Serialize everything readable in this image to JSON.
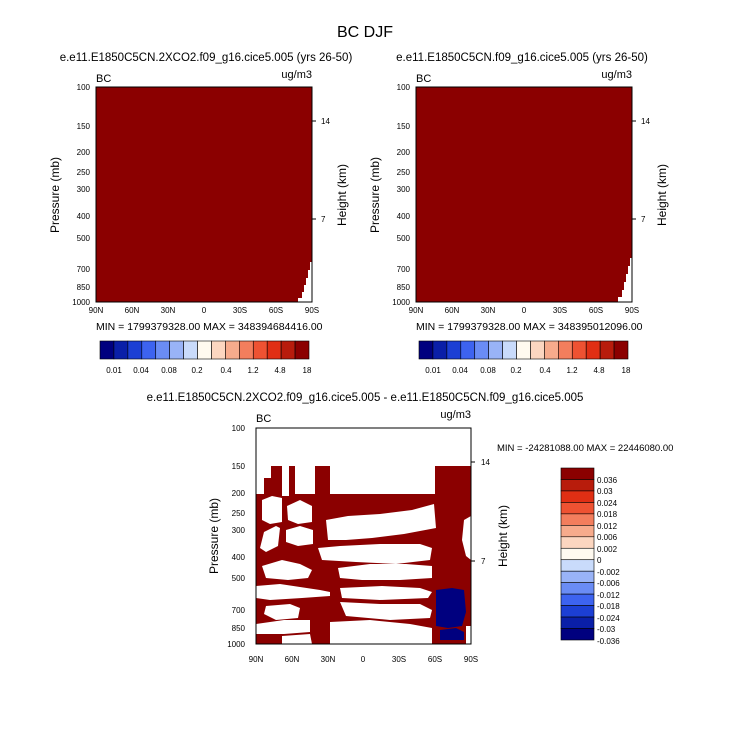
{
  "figure": {
    "title": "BC DJF"
  },
  "colors": {
    "field_fill": "#8b0000",
    "levels_fill": [
      "#00007f",
      "#0a1fa8",
      "#1c3fd4",
      "#3d63f0",
      "#6a8cf5",
      "#99b3f7",
      "#c9dbfb",
      "#fffaf0",
      "#fcd6c0",
      "#f7ab8c",
      "#f37e5d",
      "#ee5232",
      "#e02f14",
      "#b81c0c",
      "#8b0000"
    ],
    "diff_fill": [
      "#00007f",
      "#0a1fa8",
      "#1c3fd4",
      "#3d63f0",
      "#6a8cf5",
      "#99b3f7",
      "#c9dbfb",
      "#fffaf0",
      "#fcd6c0",
      "#f7ab8c",
      "#f37e5d",
      "#ee5232",
      "#e02f14",
      "#b81c0c",
      "#8b0000"
    ]
  },
  "chart_data": [
    {
      "type": "heatmap",
      "title": "e.e11.E1850C5CN.2XCO2.f09_g16.cice5.005 (yrs 26-50)",
      "left_label": "BC",
      "right_label": "ug/m3",
      "ylabel": "Pressure (mb)",
      "ylabel_right": "Height (km)",
      "x_ticks": [
        "90N",
        "60N",
        "30N",
        "0",
        "30S",
        "60S",
        "90S"
      ],
      "y_ticks": [
        "100",
        "150",
        "200",
        "250",
        "300",
        "400",
        "500",
        "700",
        "850",
        "1000"
      ],
      "y_ticks_right": [
        "14",
        "7"
      ],
      "ylim": [
        1000,
        100
      ],
      "min_max": "MIN = 1799379328.00   MAX = 348394684416.00",
      "colorbar_labels": [
        "0.01",
        "0.04",
        "0.08",
        "0.2",
        "0.4",
        "1.2",
        "4.8",
        "18"
      ]
    },
    {
      "type": "heatmap",
      "title": "e.e11.E1850C5CN.f09_g16.cice5.005 (yrs 26-50)",
      "left_label": "BC",
      "right_label": "ug/m3",
      "ylabel": "Pressure (mb)",
      "ylabel_right": "Height (km)",
      "x_ticks": [
        "90N",
        "60N",
        "30N",
        "0",
        "30S",
        "60S",
        "90S"
      ],
      "y_ticks": [
        "100",
        "150",
        "200",
        "250",
        "300",
        "400",
        "500",
        "700",
        "850",
        "1000"
      ],
      "y_ticks_right": [
        "14",
        "7"
      ],
      "ylim": [
        1000,
        100
      ],
      "min_max": "MIN = 1799379328.00   MAX = 348395012096.00",
      "colorbar_labels": [
        "0.01",
        "0.04",
        "0.08",
        "0.2",
        "0.4",
        "1.2",
        "4.8",
        "18"
      ]
    },
    {
      "type": "heatmap",
      "title": "e.e11.E1850C5CN.2XCO2.f09_g16.cice5.005 - e.e11.E1850C5CN.f09_g16.cice5.005",
      "left_label": "BC",
      "right_label": "ug/m3",
      "ylabel": "Pressure (mb)",
      "ylabel_right": "Height (km)",
      "x_ticks": [
        "90N",
        "60N",
        "30N",
        "0",
        "30S",
        "60S",
        "90S"
      ],
      "y_ticks": [
        "100",
        "150",
        "200",
        "250",
        "300",
        "400",
        "500",
        "700",
        "850",
        "1000"
      ],
      "y_ticks_right": [
        "14",
        "7"
      ],
      "ylim": [
        1000,
        100
      ],
      "min_max": "MIN = -24281088.00  MAX = 22446080.00",
      "colorbar_labels": [
        "0.036",
        "0.03",
        "0.024",
        "0.018",
        "0.012",
        "0.006",
        "0.002",
        "0",
        "-0.002",
        "-0.006",
        "-0.012",
        "-0.018",
        "-0.024",
        "-0.03",
        "-0.036"
      ]
    }
  ]
}
